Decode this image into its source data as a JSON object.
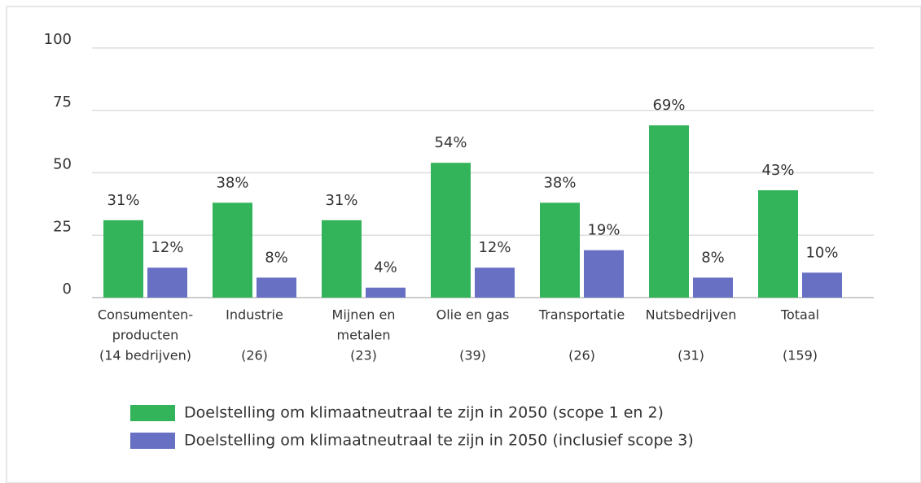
{
  "chart_data": {
    "type": "grouped_bar",
    "categories": [
      [
        "Consumenten-",
        "producten",
        "(14 bedrijven)"
      ],
      [
        "Industrie",
        "(26)"
      ],
      [
        "Mijnen en",
        "metalen",
        "(23)"
      ],
      [
        "Olie en gas",
        "(39)"
      ],
      [
        "Transportatie",
        "(26)"
      ],
      [
        "Nutsbedrijven",
        "(31)"
      ],
      [
        "Totaal",
        "(159)"
      ]
    ],
    "series": [
      {
        "name": "Doelstelling om klimaatneutraal te zijn in 2050 (scope 1 en 2)",
        "color": "#33b45a",
        "values": [
          31,
          38,
          31,
          54,
          38,
          69,
          43
        ],
        "value_labels": [
          "31%",
          "38%",
          "31%",
          "54%",
          "38%",
          "69%",
          "43%"
        ]
      },
      {
        "name": "Doelstelling om klimaatneutraal te zijn in 2050 (inclusief scope 3)",
        "color": "#6870c4",
        "values": [
          12,
          8,
          4,
          12,
          19,
          8,
          10
        ],
        "value_labels": [
          "12%",
          "8%",
          "4%",
          "12%",
          "19%",
          "8%",
          "10%"
        ]
      }
    ],
    "ylim": [
      0,
      100
    ],
    "yticks": [
      0,
      25,
      50,
      75,
      100
    ],
    "grid": true
  }
}
